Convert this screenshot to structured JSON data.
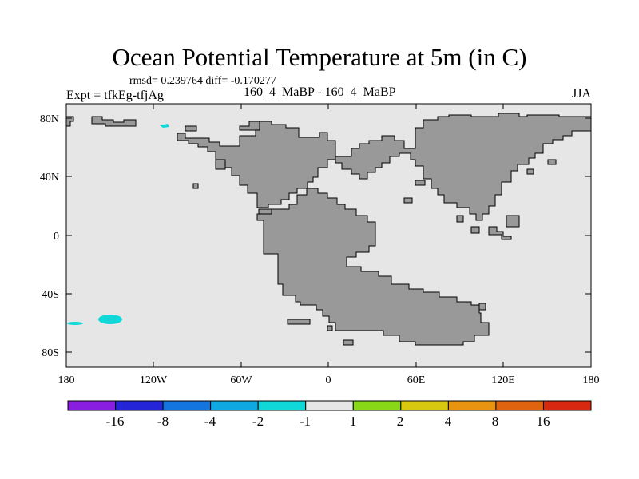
{
  "header": {
    "title": "Ocean Potential Temperature at 5m (in C)",
    "stats": "rmsd= 0.239764 diff= -0.170277",
    "expt": "Expt = tfkEg-tfjAg",
    "case": "160_4_MaBP - 160_4_MaBP",
    "season": "JJA"
  },
  "axes": {
    "lat_ticks": [
      "80N",
      "40N",
      "0",
      "40S",
      "80S"
    ],
    "lon_ticks": [
      "180",
      "120W",
      "60W",
      "0",
      "60E",
      "120E",
      "180"
    ]
  },
  "colorbar": {
    "labels": [
      "-16",
      "-8",
      "-4",
      "-2",
      "-1",
      "1",
      "2",
      "4",
      "8",
      "16"
    ],
    "colors": [
      "#8a1ee0",
      "#2424d8",
      "#1474e0",
      "#10a8e0",
      "#10d8d8",
      "#e6e6e6",
      "#88d818",
      "#d8c810",
      "#e89410",
      "#e06410",
      "#d82810"
    ]
  },
  "map_colors": {
    "ocean": "#e6e6e6",
    "land": "#999999",
    "anomaly": "#10d8d8"
  }
}
